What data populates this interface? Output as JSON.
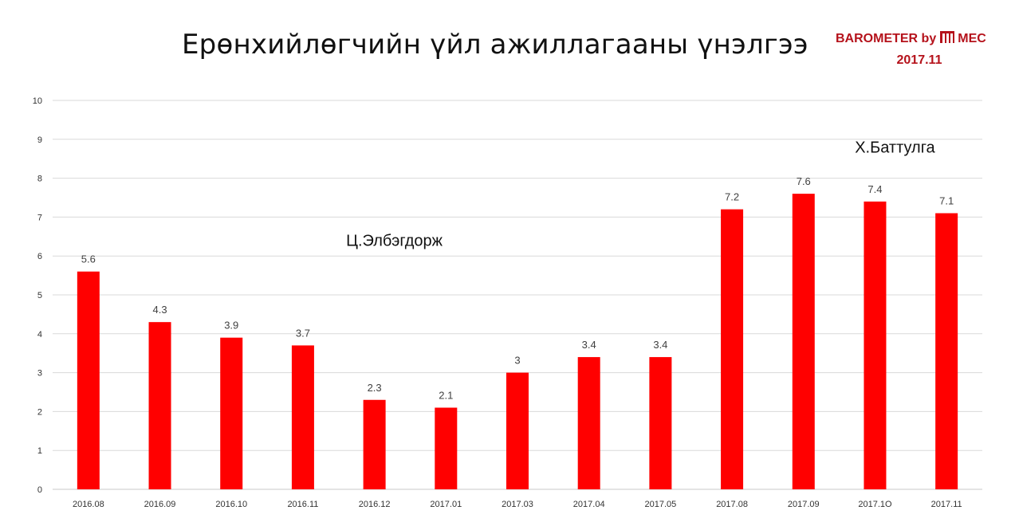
{
  "header": {
    "title": "Ерөнхийлөгчийн үйл ажиллагааны үнэлгээ",
    "brand_left": "BAROMETER by",
    "brand_right": "MEC",
    "brand_date": "2017.11",
    "brand_logo_icon": "mec-logo-icon",
    "brand_color": "#b5121b"
  },
  "chart_data": {
    "type": "bar",
    "title": "Ерөнхийлөгчийн үйл ажиллагааны үнэлгээ",
    "xlabel": "",
    "ylabel": "",
    "categories": [
      "2016.08",
      "2016.09",
      "2016.10",
      "2016.11",
      "2016.12",
      "2017.01",
      "2017.03",
      "2017.04",
      "2017.05",
      "2017.08",
      "2017.09",
      "2017.1O",
      "2017.11"
    ],
    "values": [
      5.6,
      4.3,
      3.9,
      3.7,
      2.3,
      2.1,
      3,
      3.4,
      3.4,
      7.2,
      7.6,
      7.4,
      7.1
    ],
    "data_labels": [
      "5.6",
      "4.3",
      "3.9",
      "3.7",
      "2.3",
      "2.1",
      "3",
      "3.4",
      "3.4",
      "7.2",
      "7.6",
      "7.4",
      "7.1"
    ],
    "ylim": [
      0,
      10
    ],
    "yticks": [
      "0",
      "1",
      "2",
      "3",
      "4",
      "5",
      "6",
      "7",
      "8",
      "9",
      "10"
    ],
    "grid": true,
    "bar_color": "#ff0000",
    "annotations": [
      {
        "text": "Ц.Элбэгдорж",
        "x": "2016.12",
        "y": 6.4
      },
      {
        "text": "Х.Баттулга",
        "x": "2017.1O",
        "y": 8.8
      }
    ]
  }
}
